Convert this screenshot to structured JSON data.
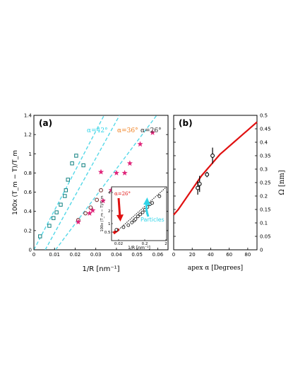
{
  "chart_data": [
    {
      "panel_label": "(a)",
      "type": "scatter",
      "xlabel": "1/R [nm⁻¹]",
      "ylabel": "100x (T_m − T)/T_m",
      "xlim": [
        0,
        0.065
      ],
      "ylim": [
        0,
        1.4
      ],
      "xticks": [
        "0",
        "0.01",
        "0.02",
        "0.03",
        "0.04",
        "0.05",
        "0.06"
      ],
      "yticks": [
        "0",
        "0.2",
        "0.4",
        "0.6",
        "0.8",
        "1",
        "1.2",
        "1.4"
      ],
      "guide_lines": [
        {
          "label": "α=42°",
          "color": "#55d8e8",
          "x": [
            0,
            0.034
          ],
          "y": [
            0,
            1.4
          ]
        },
        {
          "label": "α=36°",
          "color": "#55d8e8",
          "x": [
            0.0055,
            0.0415
          ],
          "y": [
            0,
            1.4
          ]
        },
        {
          "label": "α=26°",
          "color": "#55d8e8",
          "x": [
            0.0105,
            0.0595
          ],
          "y": [
            0,
            1.4
          ]
        }
      ],
      "line_labels": [
        {
          "text": "α=42°",
          "color": "#2fd4e8"
        },
        {
          "text": "α=36°",
          "color": "#f07d1a"
        },
        {
          "text": "α=26°",
          "color": "#222222"
        }
      ],
      "series": [
        {
          "marker": "square",
          "color": "#0d7f7f",
          "points": [
            [
              0.003,
              0.14
            ],
            [
              0.0075,
              0.25
            ],
            [
              0.0095,
              0.33
            ],
            [
              0.011,
              0.39
            ],
            [
              0.013,
              0.47
            ],
            [
              0.015,
              0.56
            ],
            [
              0.0155,
              0.62
            ],
            [
              0.0185,
              0.9
            ],
            [
              0.0165,
              0.73
            ],
            [
              0.0205,
              0.98
            ],
            [
              0.024,
              0.88
            ]
          ]
        },
        {
          "marker": "circle",
          "color": "#7a3a3a",
          "points": [
            [
              0.0215,
              0.31
            ],
            [
              0.025,
              0.38
            ],
            [
              0.0275,
              0.44
            ],
            [
              0.0305,
              0.52
            ],
            [
              0.0325,
              0.62
            ]
          ]
        },
        {
          "marker": "star",
          "color": "#e0257a",
          "points": [
            [
              0.0215,
              0.29
            ],
            [
              0.027,
              0.38
            ],
            [
              0.0285,
              0.41
            ],
            [
              0.0335,
              0.51
            ],
            [
              0.0375,
              0.62
            ],
            [
              0.041,
              0.5
            ],
            [
              0.0325,
              0.81
            ],
            [
              0.04,
              0.8
            ],
            [
              0.044,
              0.8
            ],
            [
              0.0465,
              0.9
            ],
            [
              0.0515,
              1.1
            ],
            [
              0.0575,
              1.22
            ]
          ]
        }
      ],
      "inset": {
        "ylabel": "100x (T_m − T)/T_m",
        "xlabel": "1/R [nm⁻¹]",
        "xlim": [
          0,
          0.23
        ],
        "ylim": [
          0,
          4
        ],
        "xticks": [
          "0.02",
          "0.2",
          "2"
        ],
        "yticks": [
          "0.5",
          "1",
          "2",
          "4"
        ],
        "annotations": [
          {
            "text": "α=26°",
            "color": "#e01010"
          },
          {
            "text": "Particles",
            "color": "#2fd4e8"
          }
        ],
        "circles": [
          [
            0.02,
            0.8
          ],
          [
            0.05,
            1.0
          ],
          [
            0.07,
            1.15
          ],
          [
            0.085,
            1.35
          ],
          [
            0.095,
            1.5
          ],
          [
            0.1,
            1.6
          ],
          [
            0.11,
            1.8
          ],
          [
            0.12,
            1.95
          ],
          [
            0.13,
            2.1
          ],
          [
            0.14,
            2.3
          ],
          [
            0.15,
            2.5
          ],
          [
            0.16,
            2.7
          ],
          [
            0.17,
            2.8
          ],
          [
            0.2,
            3.3
          ]
        ],
        "fit_line": {
          "x": [
            0.01,
            0.23
          ],
          "y": [
            0.5,
            4.0
          ]
        }
      }
    },
    {
      "panel_label": "(b)",
      "type": "line",
      "xlabel": "apex α [Degrees]",
      "ylabel": "Ω [nm]",
      "xlim": [
        0,
        90
      ],
      "ylim": [
        0,
        0.5
      ],
      "xticks": [
        "0",
        "20",
        "40",
        "60",
        "80"
      ],
      "yticks": [
        "0",
        "0.05",
        "0.1",
        "0.15",
        "0.2",
        "0.25",
        "0.3",
        "0.35",
        "0.4",
        "0.45",
        "0.5"
      ],
      "curve": {
        "color": "#e01010",
        "x": [
          0,
          5,
          10,
          15,
          20,
          25,
          30,
          35,
          40,
          45,
          50,
          55,
          60,
          65,
          70,
          75,
          80,
          85,
          90
        ],
        "y": [
          0.13,
          0.15,
          0.175,
          0.2,
          0.225,
          0.25,
          0.275,
          0.295,
          0.315,
          0.335,
          0.355,
          0.37,
          0.385,
          0.4,
          0.415,
          0.43,
          0.445,
          0.46,
          0.475
        ]
      },
      "points": [
        {
          "x": 26,
          "y": 0.23,
          "err": 0.025
        },
        {
          "x": 28,
          "y": 0.245,
          "err": 0.03
        },
        {
          "x": 36,
          "y": 0.28,
          "err": 0.01
        },
        {
          "x": 42,
          "y": 0.35,
          "err": 0.03
        }
      ]
    }
  ]
}
